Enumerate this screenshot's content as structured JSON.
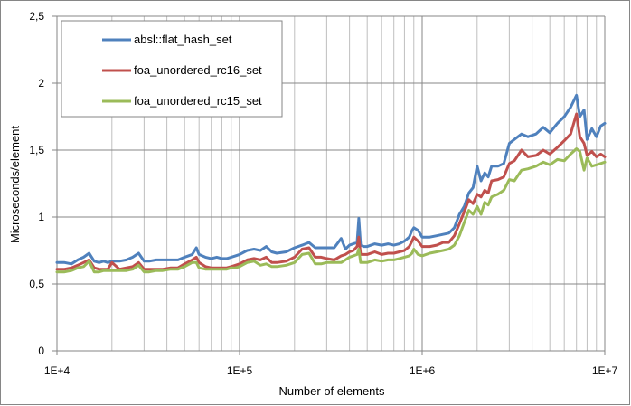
{
  "chart_data": {
    "type": "line",
    "xscale": "log",
    "xlim": [
      10000,
      10000000
    ],
    "ylim": [
      0,
      2.5
    ],
    "xlabel": "Number of elements",
    "ylabel": "Microseconds/element",
    "xticks": [
      {
        "value": 10000,
        "label": "1E+4"
      },
      {
        "value": 100000,
        "label": "1E+5"
      },
      {
        "value": 1000000,
        "label": "1E+6"
      },
      {
        "value": 10000000,
        "label": "1E+7"
      }
    ],
    "yticks": [
      {
        "value": 0,
        "label": "0"
      },
      {
        "value": 0.5,
        "label": "0,5"
      },
      {
        "value": 1,
        "label": "1"
      },
      {
        "value": 1.5,
        "label": "1,5"
      },
      {
        "value": 2,
        "label": "2"
      },
      {
        "value": 2.5,
        "label": "2,5"
      }
    ],
    "grid": {
      "major": true,
      "minor_x": true
    },
    "legend": "top-left",
    "series": [
      {
        "name": "absl::flat_hash_set",
        "color": "#4F81BD",
        "x": [
          10000,
          11000,
          12000,
          13000,
          14000,
          15000,
          16000,
          17000,
          18000,
          19000,
          20000,
          22000,
          24000,
          26000,
          28000,
          30000,
          32000,
          35000,
          38000,
          42000,
          46000,
          50000,
          55000,
          58000,
          60000,
          65000,
          70000,
          75000,
          80000,
          85000,
          90000,
          95000,
          100000,
          110000,
          120000,
          130000,
          140000,
          150000,
          160000,
          180000,
          200000,
          220000,
          240000,
          260000,
          280000,
          300000,
          330000,
          360000,
          380000,
          400000,
          420000,
          440000,
          450000,
          460000,
          480000,
          500000,
          550000,
          600000,
          650000,
          700000,
          750000,
          800000,
          850000,
          880000,
          900000,
          950000,
          1000000,
          1100000,
          1200000,
          1300000,
          1400000,
          1500000,
          1600000,
          1700000,
          1800000,
          1900000,
          2000000,
          2100000,
          2200000,
          2300000,
          2400000,
          2600000,
          2800000,
          3000000,
          3200000,
          3500000,
          3800000,
          4200000,
          4600000,
          5000000,
          5500000,
          6000000,
          6500000,
          7000000,
          7300000,
          7700000,
          8000000,
          8500000,
          9000000,
          9500000,
          10000000
        ],
        "y": [
          0.66,
          0.66,
          0.65,
          0.68,
          0.7,
          0.73,
          0.67,
          0.66,
          0.67,
          0.66,
          0.67,
          0.67,
          0.68,
          0.7,
          0.73,
          0.67,
          0.67,
          0.68,
          0.68,
          0.68,
          0.68,
          0.7,
          0.72,
          0.77,
          0.72,
          0.7,
          0.69,
          0.7,
          0.69,
          0.69,
          0.7,
          0.71,
          0.72,
          0.75,
          0.76,
          0.75,
          0.78,
          0.74,
          0.73,
          0.74,
          0.77,
          0.79,
          0.81,
          0.77,
          0.77,
          0.77,
          0.77,
          0.84,
          0.76,
          0.79,
          0.8,
          0.81,
          0.99,
          0.79,
          0.78,
          0.78,
          0.8,
          0.79,
          0.8,
          0.79,
          0.8,
          0.82,
          0.85,
          0.9,
          0.92,
          0.9,
          0.85,
          0.85,
          0.86,
          0.87,
          0.88,
          0.92,
          1.02,
          1.08,
          1.18,
          1.22,
          1.38,
          1.27,
          1.33,
          1.3,
          1.38,
          1.38,
          1.4,
          1.55,
          1.58,
          1.62,
          1.6,
          1.62,
          1.67,
          1.63,
          1.7,
          1.75,
          1.82,
          1.91,
          1.75,
          1.8,
          1.58,
          1.66,
          1.6,
          1.68,
          1.7
        ]
      },
      {
        "name": "foa_unordered_rc16_set",
        "color": "#C0504D",
        "x": [
          10000,
          11000,
          12000,
          13000,
          14000,
          15000,
          16000,
          17000,
          18000,
          19000,
          20000,
          22000,
          24000,
          26000,
          28000,
          30000,
          32000,
          35000,
          38000,
          42000,
          46000,
          50000,
          55000,
          58000,
          60000,
          65000,
          70000,
          75000,
          80000,
          85000,
          90000,
          95000,
          100000,
          110000,
          120000,
          130000,
          140000,
          150000,
          160000,
          180000,
          200000,
          220000,
          240000,
          260000,
          280000,
          300000,
          330000,
          360000,
          380000,
          400000,
          420000,
          440000,
          450000,
          460000,
          480000,
          500000,
          550000,
          600000,
          650000,
          700000,
          750000,
          800000,
          850000,
          880000,
          900000,
          950000,
          1000000,
          1100000,
          1200000,
          1300000,
          1400000,
          1500000,
          1600000,
          1700000,
          1800000,
          1900000,
          2000000,
          2100000,
          2200000,
          2300000,
          2400000,
          2600000,
          2800000,
          3000000,
          3200000,
          3500000,
          3800000,
          4200000,
          4600000,
          5000000,
          5500000,
          6000000,
          6500000,
          7000000,
          7300000,
          7700000,
          8000000,
          8500000,
          9000000,
          9500000,
          10000000
        ],
        "y": [
          0.61,
          0.61,
          0.62,
          0.64,
          0.66,
          0.68,
          0.62,
          0.61,
          0.61,
          0.61,
          0.66,
          0.61,
          0.62,
          0.63,
          0.66,
          0.61,
          0.61,
          0.61,
          0.61,
          0.62,
          0.62,
          0.65,
          0.68,
          0.7,
          0.66,
          0.63,
          0.62,
          0.62,
          0.62,
          0.62,
          0.63,
          0.64,
          0.65,
          0.68,
          0.69,
          0.68,
          0.7,
          0.66,
          0.66,
          0.67,
          0.7,
          0.76,
          0.77,
          0.7,
          0.7,
          0.69,
          0.68,
          0.71,
          0.72,
          0.74,
          0.75,
          0.78,
          0.85,
          0.72,
          0.72,
          0.72,
          0.74,
          0.72,
          0.73,
          0.73,
          0.74,
          0.75,
          0.78,
          0.82,
          0.85,
          0.82,
          0.78,
          0.78,
          0.79,
          0.81,
          0.81,
          0.86,
          0.95,
          1.04,
          1.13,
          1.1,
          1.17,
          1.15,
          1.2,
          1.18,
          1.27,
          1.28,
          1.3,
          1.4,
          1.42,
          1.5,
          1.45,
          1.46,
          1.5,
          1.47,
          1.52,
          1.57,
          1.62,
          1.77,
          1.6,
          1.55,
          1.46,
          1.49,
          1.45,
          1.47,
          1.45
        ]
      },
      {
        "name": "foa_unordered_rc15_set",
        "color": "#9BBB59",
        "x": [
          10000,
          11000,
          12000,
          13000,
          14000,
          15000,
          16000,
          17000,
          18000,
          19000,
          20000,
          22000,
          24000,
          26000,
          28000,
          30000,
          32000,
          35000,
          38000,
          42000,
          46000,
          50000,
          55000,
          58000,
          60000,
          65000,
          70000,
          75000,
          80000,
          85000,
          90000,
          95000,
          100000,
          110000,
          120000,
          130000,
          140000,
          150000,
          160000,
          180000,
          200000,
          220000,
          240000,
          260000,
          280000,
          300000,
          330000,
          360000,
          380000,
          400000,
          420000,
          440000,
          450000,
          460000,
          480000,
          500000,
          550000,
          600000,
          650000,
          700000,
          750000,
          800000,
          850000,
          880000,
          900000,
          950000,
          1000000,
          1100000,
          1200000,
          1300000,
          1400000,
          1500000,
          1600000,
          1700000,
          1800000,
          1900000,
          2000000,
          2100000,
          2200000,
          2300000,
          2400000,
          2600000,
          2800000,
          3000000,
          3200000,
          3500000,
          3800000,
          4200000,
          4600000,
          5000000,
          5500000,
          6000000,
          6500000,
          7000000,
          7300000,
          7700000,
          8000000,
          8500000,
          9000000,
          9500000,
          10000000
        ],
        "y": [
          0.59,
          0.59,
          0.6,
          0.62,
          0.63,
          0.67,
          0.59,
          0.59,
          0.6,
          0.6,
          0.6,
          0.6,
          0.6,
          0.61,
          0.64,
          0.59,
          0.59,
          0.6,
          0.6,
          0.61,
          0.61,
          0.63,
          0.66,
          0.66,
          0.62,
          0.61,
          0.61,
          0.61,
          0.61,
          0.61,
          0.62,
          0.62,
          0.63,
          0.66,
          0.67,
          0.64,
          0.65,
          0.63,
          0.63,
          0.64,
          0.66,
          0.72,
          0.73,
          0.65,
          0.65,
          0.66,
          0.66,
          0.66,
          0.68,
          0.7,
          0.71,
          0.72,
          0.76,
          0.66,
          0.66,
          0.66,
          0.68,
          0.67,
          0.68,
          0.68,
          0.69,
          0.7,
          0.71,
          0.73,
          0.76,
          0.72,
          0.71,
          0.73,
          0.74,
          0.75,
          0.76,
          0.79,
          0.86,
          0.96,
          1.05,
          1.02,
          1.08,
          1.02,
          1.11,
          1.09,
          1.15,
          1.17,
          1.2,
          1.28,
          1.27,
          1.35,
          1.36,
          1.38,
          1.41,
          1.39,
          1.43,
          1.42,
          1.47,
          1.51,
          1.49,
          1.35,
          1.44,
          1.38,
          1.39,
          1.4,
          1.41
        ]
      }
    ]
  }
}
